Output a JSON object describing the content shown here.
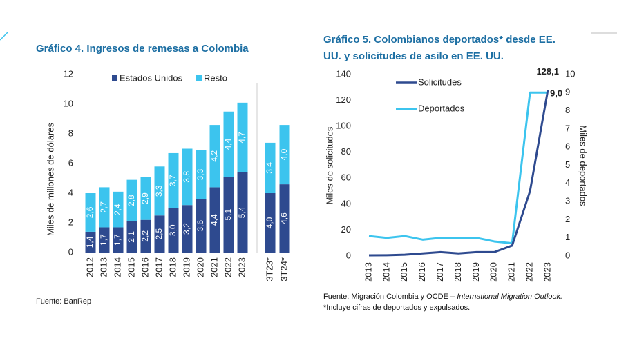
{
  "chart_data": [
    {
      "type": "stacked-bar",
      "title": "Gráfico 4. Ingresos de remesas a Colombia",
      "ylabel": "Miles de millones de dólares",
      "categories": [
        "2012",
        "2013",
        "2014",
        "2015",
        "2016",
        "2017",
        "2018",
        "2019",
        "2020",
        "2021",
        "2022",
        "2023",
        "3T23*",
        "3T24*"
      ],
      "series": [
        {
          "name": "Estados Unidos",
          "color": "#2e4a8f",
          "values": [
            1.4,
            1.7,
            1.7,
            2.1,
            2.2,
            2.5,
            3.0,
            3.2,
            3.6,
            4.4,
            5.1,
            5.4,
            4.0,
            4.6
          ],
          "value_labels": [
            "1,4",
            "1,7",
            "1,7",
            "2,1",
            "2,2",
            "2,5",
            "3,0",
            "3,2",
            "3,6",
            "4,4",
            "5,1",
            "5,4",
            "4,0",
            "4,6"
          ]
        },
        {
          "name": "Resto",
          "color": "#3cc4ee",
          "values": [
            2.6,
            2.7,
            2.4,
            2.8,
            2.9,
            3.3,
            3.7,
            3.8,
            3.3,
            4.2,
            4.4,
            4.7,
            3.4,
            4.0
          ],
          "value_labels": [
            "2,6",
            "2,7",
            "2,4",
            "2,8",
            "2,9",
            "3,3",
            "3,7",
            "3,8",
            "3,3",
            "4,2",
            "4,4",
            "4,7",
            "3,4",
            "4,0"
          ]
        }
      ],
      "ylim": [
        0,
        12
      ],
      "yticks": [
        0,
        2,
        4,
        6,
        8,
        10,
        12
      ],
      "source": "Fuente: BanRep"
    },
    {
      "type": "line",
      "title": [
        "Gráfico 5. Colombianos deportados* desde EE.",
        "UU. y solicitudes de asilo en EE. UU."
      ],
      "ylabel": "Miles de solicitudes",
      "y2label": "Miles de deportados",
      "categories": [
        "2013",
        "2014",
        "2015",
        "2016",
        "2017",
        "2018",
        "2019",
        "2020",
        "2021",
        "2022",
        "2023"
      ],
      "series": [
        {
          "name": "Solicitudes",
          "color": "#2e4a8f",
          "values": [
            0.5,
            0.6,
            1,
            2,
            3,
            2,
            3,
            3,
            8,
            50,
            128.1
          ],
          "value_labels": [
            null,
            null,
            null,
            null,
            null,
            null,
            null,
            null,
            null,
            null,
            "128,1"
          ]
        },
        {
          "name": "Deportados",
          "color": "#3cc4ee",
          "axis": "y2",
          "values": [
            1.1,
            1.0,
            1.1,
            0.9,
            1.0,
            1.0,
            1.0,
            0.8,
            0.7,
            9.0,
            9.0
          ],
          "value_labels": [
            null,
            null,
            null,
            null,
            null,
            null,
            null,
            null,
            null,
            null,
            "9,0"
          ]
        }
      ],
      "ylim": [
        0,
        140
      ],
      "yticks": [
        0,
        20,
        40,
        60,
        80,
        100,
        120,
        140
      ],
      "y2lim": [
        0,
        10
      ],
      "y2ticks": [
        0,
        1,
        2,
        3,
        4,
        5,
        6,
        7,
        8,
        9,
        10
      ],
      "source": [
        "Fuente: Migración Colombia y OCDE – ",
        "International Migration Outlook."
      ],
      "note": "*Incluye cifras de deportados y expulsados."
    }
  ]
}
